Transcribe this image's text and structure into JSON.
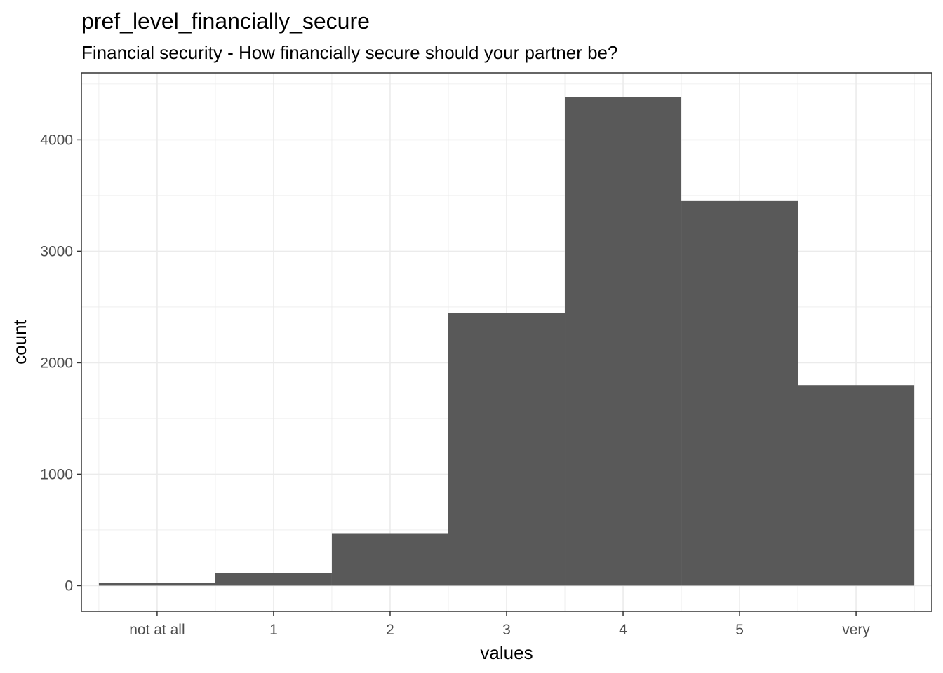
{
  "chart_data": {
    "type": "bar",
    "title": "pref_level_financially_secure",
    "subtitle": "Financial security - How financially secure should your partner be?",
    "xlabel": "values",
    "ylabel": "count",
    "categories": [
      "not at all",
      "1",
      "2",
      "3",
      "4",
      "5",
      "very"
    ],
    "values": [
      25,
      110,
      465,
      2445,
      4385,
      3450,
      1800
    ],
    "ylim": [
      -230,
      4600
    ],
    "yticks": [
      0,
      1000,
      2000,
      3000,
      4000
    ],
    "grid": true,
    "bar_color": "#595959",
    "grid_color": "#ebebeb",
    "border_color": "#333333"
  }
}
